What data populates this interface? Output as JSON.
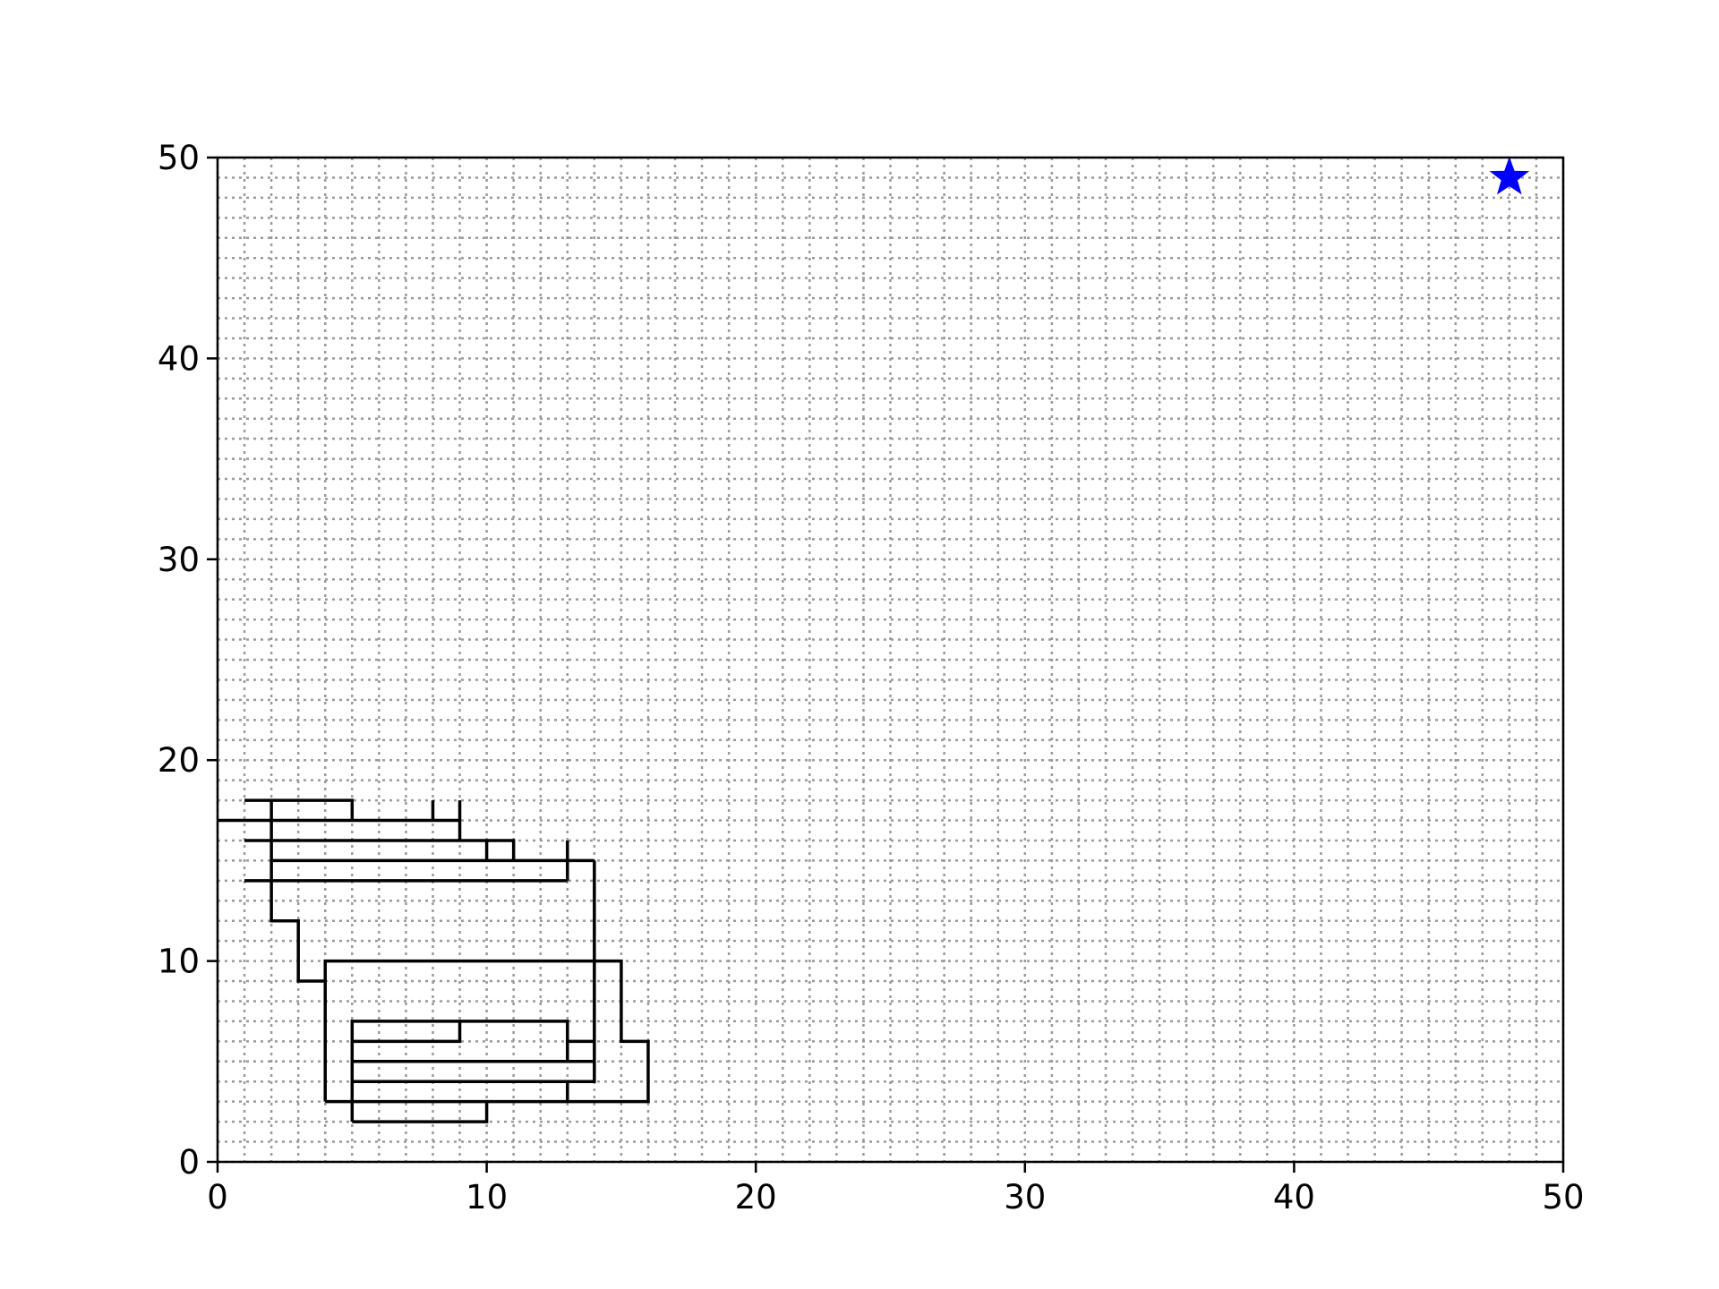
{
  "chart_data": {
    "type": "line",
    "title": "",
    "xlabel": "",
    "ylabel": "",
    "xlim": [
      0,
      50
    ],
    "ylim": [
      0,
      50
    ],
    "x_ticks": [
      0,
      10,
      20,
      30,
      40,
      50
    ],
    "y_ticks": [
      0,
      10,
      20,
      30,
      40,
      50
    ],
    "x_tick_labels": [
      "0",
      "10",
      "20",
      "30",
      "40",
      "50"
    ],
    "y_tick_labels": [
      "0",
      "10",
      "20",
      "30",
      "40",
      "50"
    ],
    "grid": "on, dotted grey, every 1 unit",
    "segments": [
      [
        [
          1,
          18
        ],
        [
          5,
          18
        ],
        [
          5,
          17
        ]
      ],
      [
        [
          0,
          17
        ],
        [
          9,
          17
        ]
      ],
      [
        [
          8,
          18
        ],
        [
          8,
          17
        ]
      ],
      [
        [
          9,
          18
        ],
        [
          9,
          16
        ]
      ],
      [
        [
          1,
          16
        ],
        [
          11,
          16
        ],
        [
          11,
          15
        ]
      ],
      [
        [
          10,
          16
        ],
        [
          10,
          15
        ]
      ],
      [
        [
          2,
          15
        ],
        [
          14,
          15
        ]
      ],
      [
        [
          1,
          14
        ],
        [
          13,
          14
        ]
      ],
      [
        [
          13,
          16
        ],
        [
          13,
          14
        ]
      ],
      [
        [
          2,
          18
        ],
        [
          2,
          12
        ],
        [
          3,
          12
        ],
        [
          3,
          9
        ],
        [
          4,
          9
        ]
      ],
      [
        [
          14,
          15
        ],
        [
          14,
          4
        ],
        [
          5,
          4
        ]
      ],
      [
        [
          4,
          3
        ],
        [
          4,
          10
        ],
        [
          15,
          10
        ],
        [
          15,
          6
        ],
        [
          16,
          6
        ],
        [
          16,
          3
        ],
        [
          4,
          3
        ]
      ],
      [
        [
          5,
          2
        ],
        [
          5,
          7
        ],
        [
          13,
          7
        ],
        [
          13,
          5
        ]
      ],
      [
        [
          5,
          6
        ],
        [
          9,
          6
        ],
        [
          9,
          7
        ]
      ],
      [
        [
          13,
          6
        ],
        [
          14,
          6
        ]
      ],
      [
        [
          5,
          5
        ],
        [
          14,
          5
        ]
      ],
      [
        [
          13,
          4
        ],
        [
          13,
          3
        ]
      ],
      [
        [
          5,
          2
        ],
        [
          10,
          2
        ],
        [
          10,
          3
        ]
      ]
    ],
    "marker": {
      "type": "star",
      "x": 48,
      "y": 49,
      "color": "#0000ff"
    },
    "line_color": "#000000"
  }
}
